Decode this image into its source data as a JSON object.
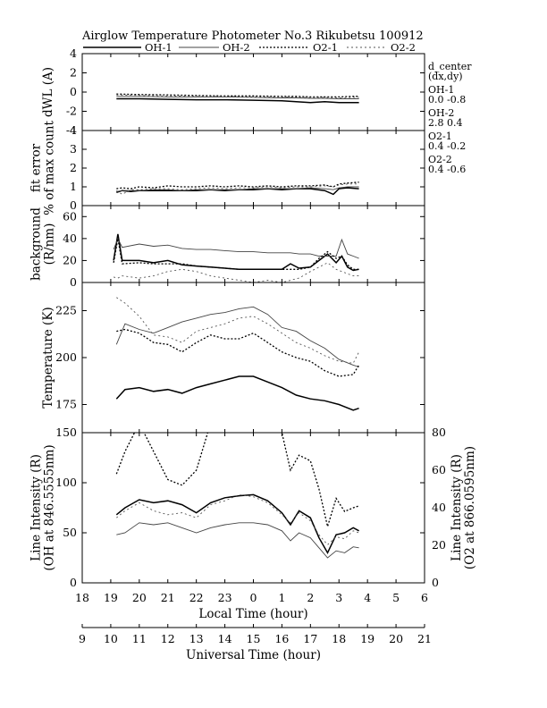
{
  "title": "Airglow Temperature Photometer No.3   Rikubetsu    100912",
  "legend": [
    {
      "key": "oh1",
      "label": "OH-1"
    },
    {
      "key": "oh2",
      "label": "OH-2"
    },
    {
      "key": "o21",
      "label": "O2-1"
    },
    {
      "key": "o22",
      "label": "O2-2"
    }
  ],
  "series_styles": {
    "oh1": {
      "color": "#000000",
      "dash": ""
    },
    "oh2": {
      "color": "#444444",
      "dash": ""
    },
    "o21": {
      "color": "#000000",
      "dash": "2,2"
    },
    "o22": {
      "color": "#555555",
      "dash": "2,3"
    }
  },
  "side_info": [
    "d_center",
    "(dx,dy)",
    "OH-1",
    "0.0  -0.8",
    "OH-2",
    "2.8  0.4",
    "O2-1",
    "0.4  -0.2",
    "O2-2",
    "0.4  -0.6"
  ],
  "xaxis": {
    "local_label": "Local Time (hour)",
    "local_ticks": [
      "18",
      "19",
      "20",
      "21",
      "22",
      "23",
      "0",
      "1",
      "2",
      "3",
      "4",
      "5",
      "6"
    ],
    "ut_label": "Universal Time (hour)",
    "ut_ticks": [
      "9",
      "10",
      "11",
      "12",
      "13",
      "14",
      "15",
      "16",
      "17",
      "18",
      "19",
      "20",
      "21"
    ],
    "range_hours": [
      9,
      21
    ]
  },
  "chart_data": [
    {
      "id": "dwl",
      "type": "line",
      "ylabel": [
        "dWL (A)"
      ],
      "ylim": [
        -4,
        4
      ],
      "yticks": [
        "4",
        "2",
        "0",
        "-2",
        "-4"
      ],
      "ytick_values": [
        4,
        2,
        0,
        -2,
        -4
      ],
      "x": [
        10.2,
        11,
        12,
        13,
        14,
        15,
        16,
        16.5,
        17,
        17.5,
        18,
        18.5,
        18.7
      ],
      "series": [
        {
          "key": "oh1",
          "values": [
            -0.7,
            -0.7,
            -0.75,
            -0.8,
            -0.8,
            -0.85,
            -0.9,
            -1.0,
            -1.1,
            -1.0,
            -1.1,
            -1.1,
            -1.1
          ]
        },
        {
          "key": "oh2",
          "values": [
            -0.45,
            -0.45,
            -0.5,
            -0.5,
            -0.5,
            -0.55,
            -0.6,
            -0.6,
            -0.65,
            -0.65,
            -0.7,
            -0.7,
            -0.7
          ]
        },
        {
          "key": "o21",
          "values": [
            -0.2,
            -0.25,
            -0.3,
            -0.35,
            -0.4,
            -0.4,
            -0.45,
            -0.45,
            -0.5,
            -0.5,
            -0.5,
            -0.45,
            -0.45
          ]
        },
        {
          "key": "o22",
          "values": [
            -0.3,
            -0.35,
            -0.4,
            -0.45,
            -0.45,
            -0.5,
            -0.5,
            -0.55,
            -0.55,
            -0.55,
            -0.6,
            -0.55,
            -0.55
          ]
        }
      ]
    },
    {
      "id": "fit",
      "type": "line",
      "ylabel": [
        "fit error",
        "% of max count"
      ],
      "ylim": [
        0,
        4
      ],
      "yticks": [
        "0",
        "1",
        "2",
        "3",
        "4"
      ],
      "ytick_values": [
        0,
        1,
        2,
        3,
        4
      ],
      "x": [
        10.2,
        10.4,
        10.7,
        11,
        11.5,
        12,
        12.5,
        13,
        13.5,
        14,
        14.5,
        15,
        15.5,
        16,
        16.5,
        17,
        17.5,
        17.8,
        18,
        18.3,
        18.7
      ],
      "series": [
        {
          "key": "oh1",
          "values": [
            0.7,
            0.8,
            0.75,
            0.8,
            0.8,
            0.8,
            0.8,
            0.8,
            0.85,
            0.8,
            0.85,
            0.85,
            0.9,
            0.85,
            0.9,
            0.9,
            0.8,
            0.6,
            0.9,
            0.95,
            0.9
          ]
        },
        {
          "key": "oh2",
          "values": [
            0.75,
            0.8,
            0.8,
            0.8,
            0.85,
            0.85,
            0.8,
            0.85,
            0.85,
            0.85,
            0.85,
            0.9,
            0.9,
            0.9,
            0.9,
            0.95,
            0.9,
            0.85,
            0.95,
            1.0,
            1.0
          ]
        },
        {
          "key": "o21",
          "values": [
            0.9,
            0.95,
            0.9,
            1.0,
            0.95,
            1.05,
            1.0,
            1.0,
            1.05,
            1.0,
            1.05,
            1.0,
            1.05,
            1.0,
            1.05,
            1.05,
            1.1,
            1.0,
            1.15,
            1.2,
            1.25
          ]
        },
        {
          "key": "o22",
          "values": [
            0.8,
            0.6,
            0.85,
            0.85,
            0.9,
            0.9,
            0.85,
            0.9,
            0.95,
            0.9,
            0.95,
            0.95,
            1.0,
            0.95,
            1.0,
            1.0,
            1.05,
            1.0,
            1.1,
            1.15,
            1.15
          ]
        }
      ]
    },
    {
      "id": "bg",
      "type": "line",
      "ylabel": [
        "background",
        "(R/nm)"
      ],
      "ylim": [
        0,
        70
      ],
      "yticks": [
        "0",
        "20",
        "40",
        "60"
      ],
      "ytick_values": [
        0,
        20,
        40,
        60
      ],
      "x": [
        10.1,
        10.25,
        10.4,
        11,
        11.5,
        12,
        12.5,
        13,
        13.5,
        14,
        14.5,
        15,
        15.5,
        16,
        16.3,
        16.6,
        17,
        17.3,
        17.6,
        17.9,
        18.1,
        18.3,
        18.5,
        18.7
      ],
      "series": [
        {
          "key": "oh1",
          "values": [
            20,
            44,
            20,
            20,
            18,
            20,
            16,
            15,
            14,
            13,
            12,
            12,
            12,
            12,
            17,
            13,
            14,
            20,
            26,
            18,
            24,
            14,
            11,
            12
          ]
        },
        {
          "key": "oh2",
          "values": [
            30,
            40,
            32,
            35,
            33,
            34,
            31,
            30,
            30,
            29,
            28,
            28,
            27,
            27,
            27,
            26,
            26,
            24,
            24,
            24,
            39,
            26,
            24,
            22
          ]
        },
        {
          "key": "o21",
          "values": [
            18,
            40,
            17,
            18,
            17,
            17,
            17,
            15,
            14,
            13,
            12,
            12,
            12,
            12,
            12,
            12,
            14,
            22,
            28,
            22,
            24,
            16,
            12,
            12
          ]
        },
        {
          "key": "o22",
          "values": [
            5,
            4,
            6,
            4,
            6,
            10,
            12,
            10,
            6,
            4,
            2,
            0,
            2,
            0,
            2,
            4,
            10,
            14,
            18,
            12,
            10,
            8,
            6,
            6
          ]
        }
      ]
    },
    {
      "id": "temp",
      "type": "line",
      "ylabel": [
        "Temperature (K)"
      ],
      "ylim": [
        160,
        240
      ],
      "yticks": [
        "175",
        "200",
        "225"
      ],
      "ytick_values": [
        175,
        200,
        225
      ],
      "x": [
        10.2,
        10.5,
        11,
        11.5,
        12,
        12.5,
        13,
        13.5,
        14,
        14.5,
        15,
        15.5,
        16,
        16.5,
        17,
        17.5,
        18,
        18.5,
        18.7
      ],
      "series": [
        {
          "key": "oh1",
          "values": [
            178,
            183,
            184,
            182,
            183,
            181,
            184,
            186,
            188,
            190,
            190,
            187,
            184,
            180,
            178,
            177,
            175,
            172,
            173
          ]
        },
        {
          "key": "oh2",
          "values": [
            207,
            218,
            215,
            213,
            216,
            219,
            221,
            223,
            224,
            226,
            227,
            223,
            216,
            214,
            209,
            205,
            199,
            196,
            195
          ]
        },
        {
          "key": "o21",
          "values": [
            214,
            215,
            213,
            208,
            207,
            203,
            208,
            212,
            210,
            210,
            213,
            208,
            203,
            200,
            198,
            193,
            190,
            191,
            196
          ]
        },
        {
          "key": "o22",
          "values": [
            232,
            229,
            222,
            212,
            211,
            208,
            214,
            216,
            218,
            221,
            222,
            218,
            213,
            208,
            205,
            201,
            198,
            197,
            203
          ]
        }
      ]
    },
    {
      "id": "intensity",
      "type": "line",
      "ylabel": [
        "Line Intensity (R)",
        "(OH at 846.5555nm)"
      ],
      "ylim": [
        0,
        150
      ],
      "yticks": [
        "0",
        "50",
        "100",
        "150"
      ],
      "ytick_values": [
        0,
        50,
        100,
        150
      ],
      "y2label": [
        "Line Intensity (R)",
        "(O2 at 866.0595nm)"
      ],
      "y2lim": [
        0,
        80
      ],
      "y2ticks": [
        "0",
        "20",
        "40",
        "60",
        "80"
      ],
      "y2tick_values": [
        0,
        20,
        40,
        60,
        80
      ],
      "x": [
        10.2,
        10.5,
        11,
        11.5,
        12,
        12.5,
        13,
        13.5,
        14,
        14.5,
        15,
        15.5,
        16,
        16.3,
        16.6,
        17,
        17.3,
        17.6,
        17.9,
        18.2,
        18.5,
        18.7
      ],
      "series": [
        {
          "key": "oh1",
          "axis": "left",
          "values": [
            68,
            75,
            83,
            80,
            82,
            78,
            70,
            80,
            85,
            87,
            88,
            82,
            70,
            58,
            72,
            65,
            45,
            30,
            48,
            50,
            55,
            52
          ]
        },
        {
          "key": "oh2",
          "axis": "left",
          "values": [
            48,
            50,
            60,
            58,
            60,
            55,
            50,
            55,
            58,
            60,
            60,
            58,
            52,
            42,
            50,
            45,
            35,
            25,
            32,
            30,
            36,
            35
          ]
        },
        {
          "key": "o21",
          "axis": "right",
          "values": [
            58,
            70,
            85,
            70,
            55,
            52,
            60,
            85,
            90,
            90,
            90,
            88,
            80,
            60,
            68,
            65,
            50,
            30,
            45,
            38,
            40,
            41
          ]
        },
        {
          "key": "o22",
          "axis": "left",
          "values": [
            65,
            72,
            80,
            72,
            68,
            70,
            65,
            78,
            82,
            88,
            86,
            80,
            68,
            60,
            70,
            62,
            48,
            38,
            46,
            44,
            52,
            50
          ]
        }
      ]
    }
  ]
}
